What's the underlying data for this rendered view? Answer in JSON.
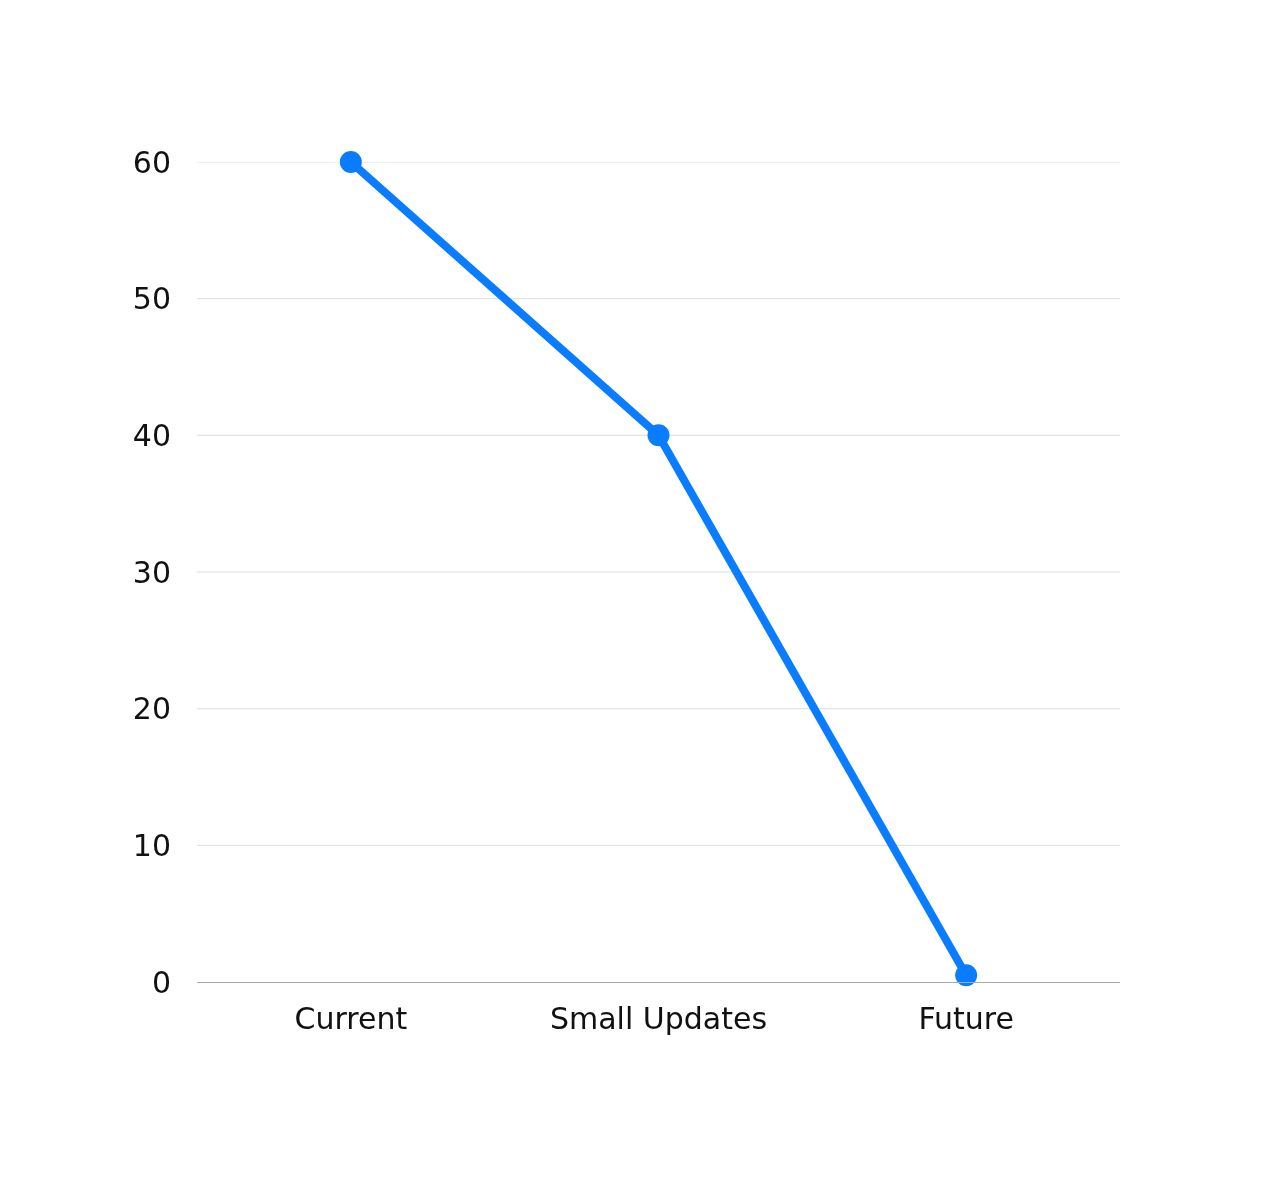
{
  "chart_data": {
    "type": "line",
    "categories": [
      "Current",
      "Small Updates",
      "Future"
    ],
    "series": [
      {
        "color": "#0a7cff",
        "values": [
          60,
          40,
          0.5
        ]
      }
    ],
    "ylim": [
      0,
      60
    ],
    "yticks": [
      0,
      10,
      20,
      30,
      40,
      50,
      60
    ],
    "grid": "y",
    "marker": "circle",
    "line_style": "solid"
  }
}
